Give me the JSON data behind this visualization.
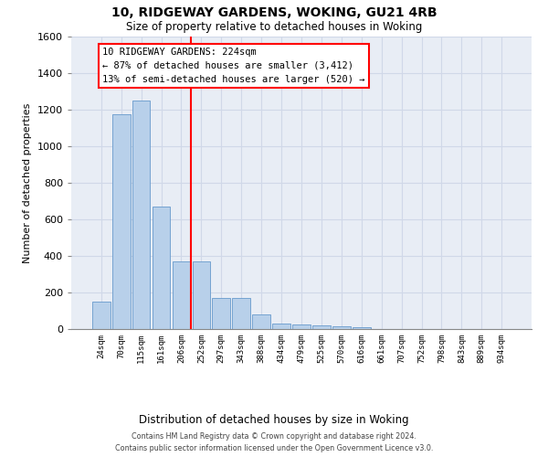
{
  "title1": "10, RIDGEWAY GARDENS, WOKING, GU21 4RB",
  "title2": "Size of property relative to detached houses in Woking",
  "xlabel": "Distribution of detached houses by size in Woking",
  "ylabel": "Number of detached properties",
  "categories": [
    "24sqm",
    "70sqm",
    "115sqm",
    "161sqm",
    "206sqm",
    "252sqm",
    "297sqm",
    "343sqm",
    "388sqm",
    "434sqm",
    "479sqm",
    "525sqm",
    "570sqm",
    "616sqm",
    "661sqm",
    "707sqm",
    "752sqm",
    "798sqm",
    "843sqm",
    "889sqm",
    "934sqm"
  ],
  "values": [
    150,
    1175,
    1250,
    670,
    370,
    370,
    170,
    170,
    80,
    30,
    25,
    20,
    15,
    10,
    0,
    0,
    0,
    0,
    0,
    0,
    0
  ],
  "bar_color": "#b8d0ea",
  "bar_edge_color": "#6699cc",
  "red_line_x": 4.5,
  "property_label": "10 RIDGEWAY GARDENS: 224sqm",
  "annotation_line1": "← 87% of detached houses are smaller (3,412)",
  "annotation_line2": "13% of semi-detached houses are larger (520) →",
  "ylim": [
    0,
    1600
  ],
  "yticks": [
    0,
    200,
    400,
    600,
    800,
    1000,
    1200,
    1400,
    1600
  ],
  "grid_color": "#d0d8e8",
  "plot_bg_color": "#e8edf5",
  "footer1": "Contains HM Land Registry data © Crown copyright and database right 2024.",
  "footer2": "Contains public sector information licensed under the Open Government Licence v3.0."
}
